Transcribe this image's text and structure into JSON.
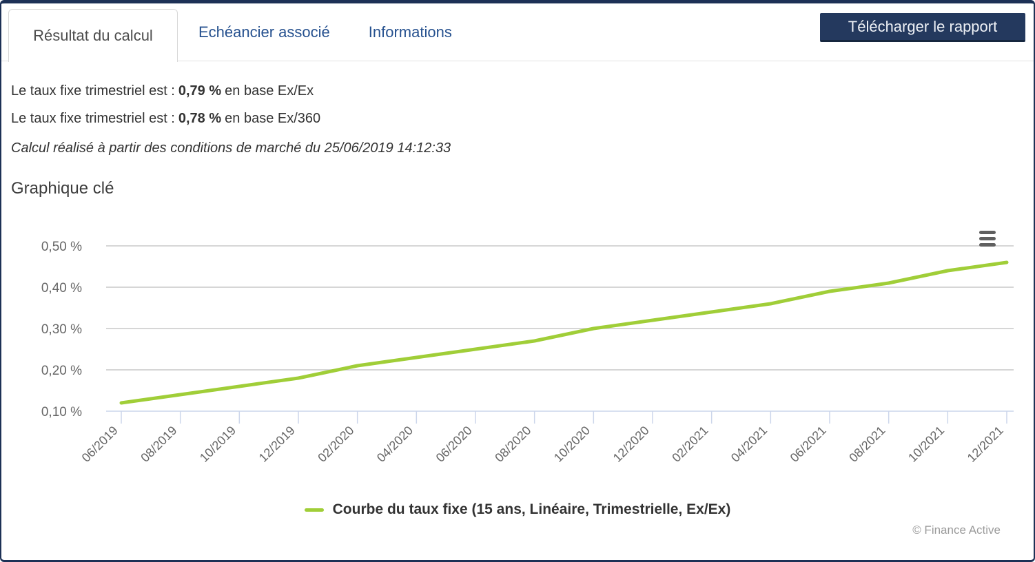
{
  "tabs": [
    {
      "label": "Résultat du calcul",
      "active": true
    },
    {
      "label": "Echéancier associé",
      "active": false
    },
    {
      "label": "Informations",
      "active": false
    }
  ],
  "download_button": "Télécharger le rapport",
  "results": {
    "line1": {
      "prefix": "Le taux fixe trimestriel est :",
      "value": "0,79 %",
      "suffix": "en base Ex/Ex"
    },
    "line2": {
      "prefix": "Le taux fixe trimestriel est :",
      "value": "0,78 %",
      "suffix": "en base Ex/360"
    },
    "note": "Calcul réalisé à partir des conditions de marché du 25/06/2019 14:12:33"
  },
  "section_title": "Graphique clé",
  "credits": "© Finance Active",
  "colors": {
    "accent_navy": "#24395e",
    "tab_link_blue": "#26518f",
    "series_green": "#a0ce38",
    "grid_gray": "#c9c9c9",
    "axis_blue": "#ccd6eb",
    "axis_label_gray": "#666666"
  },
  "icons": {
    "context_menu": "hamburger-icon"
  },
  "chart_data": {
    "type": "line",
    "title": "",
    "xlabel": "",
    "ylabel": "",
    "x_categories": [
      "06/2019",
      "08/2019",
      "10/2019",
      "12/2019",
      "02/2020",
      "04/2020",
      "06/2020",
      "08/2020",
      "10/2020",
      "12/2020",
      "02/2021",
      "04/2021",
      "06/2021",
      "08/2021",
      "10/2021",
      "12/2021"
    ],
    "series": [
      {
        "name": "Courbe du taux fixe (15 ans, Linéaire, Trimestrielle, Ex/Ex)",
        "color": "#a0ce38",
        "values_pct": [
          0.12,
          0.14,
          0.16,
          0.18,
          0.21,
          0.23,
          0.25,
          0.27,
          0.3,
          0.32,
          0.34,
          0.36,
          0.39,
          0.41,
          0.44,
          0.46
        ]
      }
    ],
    "y_ticks": [
      {
        "value": 0.1,
        "label": "0,10 %"
      },
      {
        "value": 0.2,
        "label": "0,20 %"
      },
      {
        "value": 0.3,
        "label": "0,30 %"
      },
      {
        "value": 0.4,
        "label": "0,40 %"
      },
      {
        "value": 0.5,
        "label": "0,50 %"
      }
    ],
    "ylim": [
      0.1,
      0.55
    ],
    "grid": true,
    "legend_position": "bottom",
    "axis_color": "#ccd6eb",
    "grid_color": "#c9c9c9",
    "label_color": "#666666"
  }
}
